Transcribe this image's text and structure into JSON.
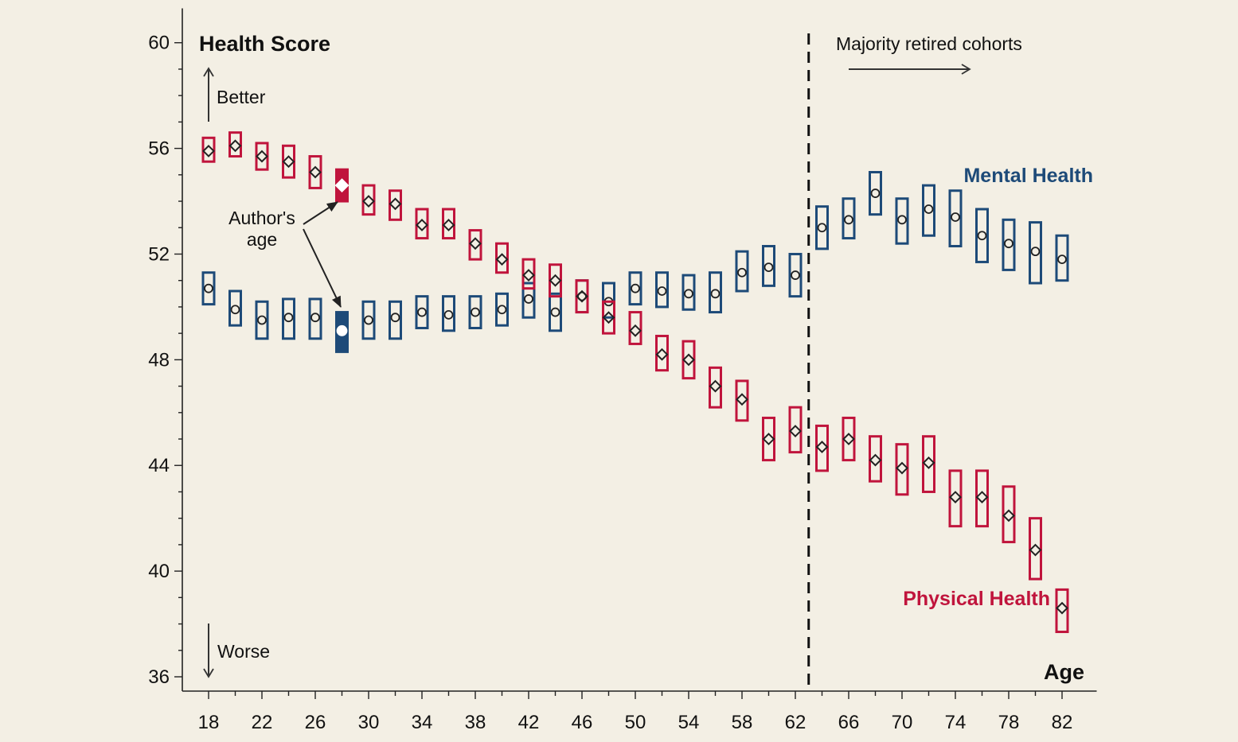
{
  "chart_data": {
    "type": "scatter",
    "title": "",
    "ylabel": "Health Score",
    "xlabel": "Age",
    "ylim": [
      36,
      61
    ],
    "xlim": [
      17,
      84
    ],
    "y_ticks": [
      36,
      40,
      44,
      48,
      52,
      56,
      60
    ],
    "x_ticks": [
      18,
      22,
      26,
      30,
      34,
      38,
      42,
      46,
      50,
      54,
      58,
      62,
      66,
      70,
      74,
      78,
      82
    ],
    "grid": false,
    "colors": {
      "mental": "#1d4a78",
      "physical": "#c0143c",
      "background": "#f3efe4"
    },
    "series": [
      {
        "name": "Mental Health",
        "marker": "circle",
        "points": [
          {
            "x": 18,
            "y": 50.7,
            "lo": 50.1,
            "hi": 51.3
          },
          {
            "x": 20,
            "y": 49.9,
            "lo": 49.3,
            "hi": 50.6
          },
          {
            "x": 22,
            "y": 49.5,
            "lo": 48.8,
            "hi": 50.2
          },
          {
            "x": 24,
            "y": 49.6,
            "lo": 48.8,
            "hi": 50.3
          },
          {
            "x": 26,
            "y": 49.6,
            "lo": 48.8,
            "hi": 50.3
          },
          {
            "x": 28,
            "y": 49.1,
            "lo": 48.3,
            "hi": 49.8
          },
          {
            "x": 30,
            "y": 49.5,
            "lo": 48.8,
            "hi": 50.2
          },
          {
            "x": 32,
            "y": 49.6,
            "lo": 48.8,
            "hi": 50.2
          },
          {
            "x": 34,
            "y": 49.8,
            "lo": 49.2,
            "hi": 50.4
          },
          {
            "x": 36,
            "y": 49.7,
            "lo": 49.1,
            "hi": 50.4
          },
          {
            "x": 38,
            "y": 49.8,
            "lo": 49.2,
            "hi": 50.4
          },
          {
            "x": 40,
            "y": 49.9,
            "lo": 49.3,
            "hi": 50.5
          },
          {
            "x": 42,
            "y": 50.3,
            "lo": 49.6,
            "hi": 50.9
          },
          {
            "x": 44,
            "y": 49.8,
            "lo": 49.1,
            "hi": 50.5
          },
          {
            "x": 46,
            "y": 50.4,
            "lo": 49.8,
            "hi": 51.0
          },
          {
            "x": 48,
            "y": 50.2,
            "lo": 49.6,
            "hi": 50.9
          },
          {
            "x": 50,
            "y": 50.7,
            "lo": 50.1,
            "hi": 51.3
          },
          {
            "x": 52,
            "y": 50.6,
            "lo": 50.0,
            "hi": 51.3
          },
          {
            "x": 54,
            "y": 50.5,
            "lo": 49.9,
            "hi": 51.2
          },
          {
            "x": 56,
            "y": 50.5,
            "lo": 49.8,
            "hi": 51.3
          },
          {
            "x": 58,
            "y": 51.3,
            "lo": 50.6,
            "hi": 52.1
          },
          {
            "x": 60,
            "y": 51.5,
            "lo": 50.8,
            "hi": 52.3
          },
          {
            "x": 62,
            "y": 51.2,
            "lo": 50.4,
            "hi": 52.0
          },
          {
            "x": 64,
            "y": 53.0,
            "lo": 52.2,
            "hi": 53.8
          },
          {
            "x": 66,
            "y": 53.3,
            "lo": 52.6,
            "hi": 54.1
          },
          {
            "x": 68,
            "y": 54.3,
            "lo": 53.5,
            "hi": 55.1
          },
          {
            "x": 70,
            "y": 53.3,
            "lo": 52.4,
            "hi": 54.1
          },
          {
            "x": 72,
            "y": 53.7,
            "lo": 52.7,
            "hi": 54.6
          },
          {
            "x": 74,
            "y": 53.4,
            "lo": 52.3,
            "hi": 54.4
          },
          {
            "x": 76,
            "y": 52.7,
            "lo": 51.7,
            "hi": 53.7
          },
          {
            "x": 78,
            "y": 52.4,
            "lo": 51.4,
            "hi": 53.3
          },
          {
            "x": 80,
            "y": 52.1,
            "lo": 50.9,
            "hi": 53.2
          },
          {
            "x": 82,
            "y": 51.8,
            "lo": 51.0,
            "hi": 52.7
          }
        ]
      },
      {
        "name": "Physical Health",
        "marker": "diamond",
        "points": [
          {
            "x": 18,
            "y": 55.9,
            "lo": 55.5,
            "hi": 56.4
          },
          {
            "x": 20,
            "y": 56.1,
            "lo": 55.7,
            "hi": 56.6
          },
          {
            "x": 22,
            "y": 55.7,
            "lo": 55.2,
            "hi": 56.2
          },
          {
            "x": 24,
            "y": 55.5,
            "lo": 54.9,
            "hi": 56.1
          },
          {
            "x": 26,
            "y": 55.1,
            "lo": 54.5,
            "hi": 55.7
          },
          {
            "x": 28,
            "y": 54.6,
            "lo": 54.0,
            "hi": 55.2
          },
          {
            "x": 30,
            "y": 54.0,
            "lo": 53.5,
            "hi": 54.6
          },
          {
            "x": 32,
            "y": 53.9,
            "lo": 53.3,
            "hi": 54.4
          },
          {
            "x": 34,
            "y": 53.1,
            "lo": 52.6,
            "hi": 53.7
          },
          {
            "x": 36,
            "y": 53.1,
            "lo": 52.6,
            "hi": 53.7
          },
          {
            "x": 38,
            "y": 52.4,
            "lo": 51.8,
            "hi": 52.9
          },
          {
            "x": 40,
            "y": 51.8,
            "lo": 51.3,
            "hi": 52.4
          },
          {
            "x": 42,
            "y": 51.2,
            "lo": 50.7,
            "hi": 51.8
          },
          {
            "x": 44,
            "y": 51.0,
            "lo": 50.4,
            "hi": 51.6
          },
          {
            "x": 46,
            "y": 50.4,
            "lo": 49.8,
            "hi": 51.0
          },
          {
            "x": 48,
            "y": 49.6,
            "lo": 49.0,
            "hi": 50.2
          },
          {
            "x": 50,
            "y": 49.1,
            "lo": 48.6,
            "hi": 49.8
          },
          {
            "x": 52,
            "y": 48.2,
            "lo": 47.6,
            "hi": 48.9
          },
          {
            "x": 54,
            "y": 48.0,
            "lo": 47.3,
            "hi": 48.7
          },
          {
            "x": 56,
            "y": 47.0,
            "lo": 46.2,
            "hi": 47.7
          },
          {
            "x": 58,
            "y": 46.5,
            "lo": 45.7,
            "hi": 47.2
          },
          {
            "x": 60,
            "y": 45.0,
            "lo": 44.2,
            "hi": 45.8
          },
          {
            "x": 62,
            "y": 45.3,
            "lo": 44.5,
            "hi": 46.2
          },
          {
            "x": 64,
            "y": 44.7,
            "lo": 43.8,
            "hi": 45.5
          },
          {
            "x": 66,
            "y": 45.0,
            "lo": 44.2,
            "hi": 45.8
          },
          {
            "x": 68,
            "y": 44.2,
            "lo": 43.4,
            "hi": 45.1
          },
          {
            "x": 70,
            "y": 43.9,
            "lo": 42.9,
            "hi": 44.8
          },
          {
            "x": 72,
            "y": 44.1,
            "lo": 43.0,
            "hi": 45.1
          },
          {
            "x": 74,
            "y": 42.8,
            "lo": 41.7,
            "hi": 43.8
          },
          {
            "x": 76,
            "y": 42.8,
            "lo": 41.7,
            "hi": 43.8
          },
          {
            "x": 78,
            "y": 42.1,
            "lo": 41.1,
            "hi": 43.2
          },
          {
            "x": 80,
            "y": 40.8,
            "lo": 39.7,
            "hi": 42.0
          },
          {
            "x": 82,
            "y": 38.6,
            "lo": 37.7,
            "hi": 39.3
          }
        ]
      }
    ],
    "highlight_age": 28,
    "retirement_line_x": 63,
    "annotations": {
      "better": "Better",
      "worse": "Worse",
      "author_age": [
        "Author's",
        "age"
      ],
      "retired": "Majority retired cohorts"
    }
  }
}
